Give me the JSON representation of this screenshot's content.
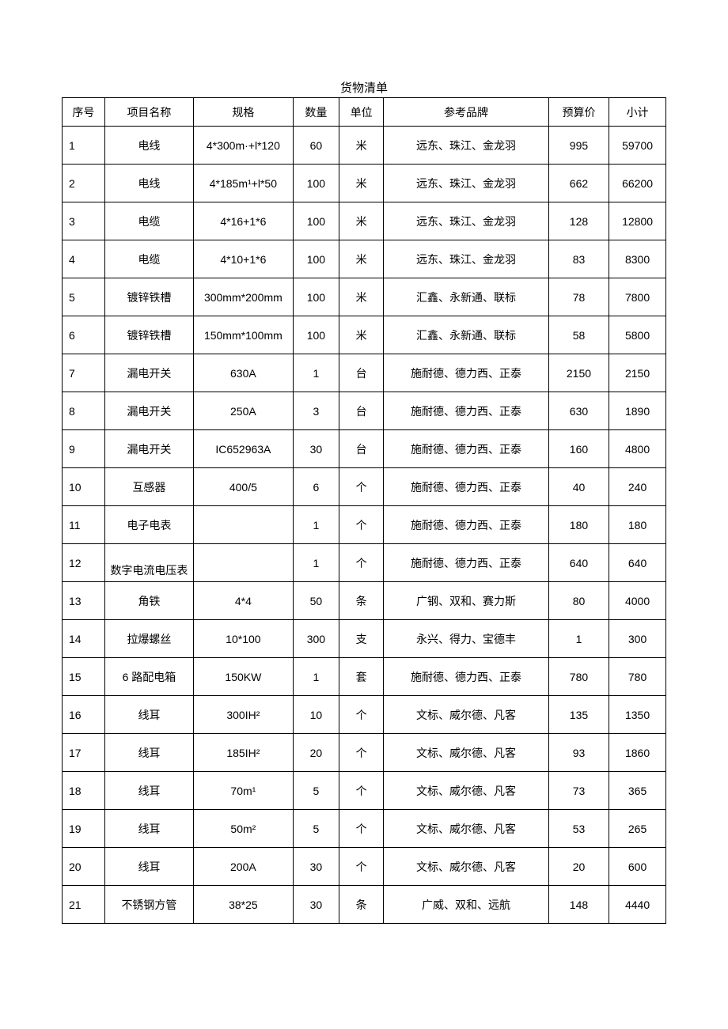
{
  "title": "货物清单",
  "columns": [
    "序号",
    "项目名称",
    "规格",
    "数量",
    "单位",
    "参考品牌",
    "预算价",
    "小计"
  ],
  "rows": [
    {
      "seq": "1",
      "name": "电线",
      "spec": "4*300m·+l*120",
      "qty": "60",
      "unit": "米",
      "brand": "远东、珠江、金龙羽",
      "price": "995",
      "subtotal": "59700"
    },
    {
      "seq": "2",
      "name": "电线",
      "spec": "4*185m¹+l*50",
      "qty": "100",
      "unit": "米",
      "brand": "远东、珠江、金龙羽",
      "price": "662",
      "subtotal": "66200"
    },
    {
      "seq": "3",
      "name": "电缆",
      "spec": "4*16+1*6",
      "qty": "100",
      "unit": "米",
      "brand": "远东、珠江、金龙羽",
      "price": "128",
      "subtotal": "12800"
    },
    {
      "seq": "4",
      "name": "电缆",
      "spec": "4*10+1*6",
      "qty": "100",
      "unit": "米",
      "brand": "远东、珠江、金龙羽",
      "price": "83",
      "subtotal": "8300"
    },
    {
      "seq": "5",
      "name": "镀锌铁槽",
      "spec": "300mm*200mm",
      "qty": "100",
      "unit": "米",
      "brand": "汇鑫、永新通、联标",
      "price": "78",
      "subtotal": "7800"
    },
    {
      "seq": "6",
      "name": "镀锌铁槽",
      "spec": "150mm*100mm",
      "qty": "100",
      "unit": "米",
      "brand": "汇鑫、永新通、联标",
      "price": "58",
      "subtotal": "5800"
    },
    {
      "seq": "7",
      "name": "漏电开关",
      "spec": "630A",
      "qty": "1",
      "unit": "台",
      "brand": "施耐德、德力西、正泰",
      "price": "2150",
      "subtotal": "2150"
    },
    {
      "seq": "8",
      "name": "漏电开关",
      "spec": "250A",
      "qty": "3",
      "unit": "台",
      "brand": "施耐德、德力西、正泰",
      "price": "630",
      "subtotal": "1890"
    },
    {
      "seq": "9",
      "name": "漏电开关",
      "spec": "IC652963A",
      "qty": "30",
      "unit": "台",
      "brand": "施耐德、德力西、正泰",
      "price": "160",
      "subtotal": "4800"
    },
    {
      "seq": "10",
      "name": "互感器",
      "spec": "400/5",
      "qty": "6",
      "unit": "个",
      "brand": "施耐德、德力西、正泰",
      "price": "40",
      "subtotal": "240"
    },
    {
      "seq": "11",
      "name": "电子电表",
      "spec": "",
      "qty": "1",
      "unit": "个",
      "brand": "施耐德、德力西、正泰",
      "price": "180",
      "subtotal": "180"
    },
    {
      "seq": "12",
      "name": "数字电流电压表",
      "spec": "",
      "qty": "1",
      "unit": "个",
      "brand": "施耐德、德力西、正泰",
      "price": "640",
      "subtotal": "640",
      "nameBottom": true
    },
    {
      "seq": "13",
      "name": "角铁",
      "spec": "4*4",
      "qty": "50",
      "unit": "条",
      "brand": "广钢、双和、赛力斯",
      "price": "80",
      "subtotal": "4000"
    },
    {
      "seq": "14",
      "name": "拉爆螺丝",
      "spec": "10*100",
      "qty": "300",
      "unit": "支",
      "brand": "永兴、得力、宝德丰",
      "price": "1",
      "subtotal": "300"
    },
    {
      "seq": "15",
      "name": "6 路配电箱",
      "spec": "150KW",
      "qty": "1",
      "unit": "套",
      "brand": "施耐德、德力西、正泰",
      "price": "780",
      "subtotal": "780"
    },
    {
      "seq": "16",
      "name": "线耳",
      "spec": "300IH²",
      "qty": "10",
      "unit": "个",
      "brand": "文标、威尔德、凡客",
      "price": "135",
      "subtotal": "1350"
    },
    {
      "seq": "17",
      "name": "线耳",
      "spec": "185IH²",
      "qty": "20",
      "unit": "个",
      "brand": "文标、威尔德、凡客",
      "price": "93",
      "subtotal": "1860"
    },
    {
      "seq": "18",
      "name": "线耳",
      "spec": "70m¹",
      "qty": "5",
      "unit": "个",
      "brand": "文标、威尔德、凡客",
      "price": "73",
      "subtotal": "365"
    },
    {
      "seq": "19",
      "name": "线耳",
      "spec": "50m²",
      "qty": "5",
      "unit": "个",
      "brand": "文标、威尔德、凡客",
      "price": "53",
      "subtotal": "265"
    },
    {
      "seq": "20",
      "name": "线耳",
      "spec": "200A",
      "qty": "30",
      "unit": "个",
      "brand": "文标、威尔德、凡客",
      "price": "20",
      "subtotal": "600"
    },
    {
      "seq": "21",
      "name": "不锈钢方管",
      "spec": "38*25",
      "qty": "30",
      "unit": "条",
      "brand": "广威、双和、远航",
      "price": "148",
      "subtotal": "4440"
    }
  ]
}
